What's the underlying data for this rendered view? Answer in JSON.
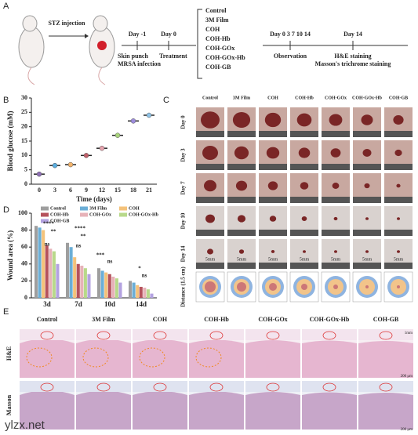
{
  "figure": {
    "panel_labels": [
      "A",
      "B",
      "C",
      "D",
      "E"
    ],
    "groups": [
      "Control",
      "3M Film",
      "COH",
      "COH-Hb",
      "COH-GOx",
      "COH-GOx-Hb",
      "COH-GB"
    ],
    "timeline": {
      "stz": "STZ injection",
      "day_m1": "Day -1",
      "day0": "Day 0",
      "punch": "Skin punch",
      "mrsa": "MRSA infection",
      "treatment": "Treatment",
      "obs_days": "Day 0 3 7 10 14",
      "day14": "Day 14",
      "observation": "Observation",
      "he": "H&E staining",
      "masson": "Masson's trichrome staining"
    },
    "photo_rows": [
      "Day 0",
      "Day 3",
      "Day 7",
      "Day 10",
      "Day 14",
      "Distance (1.5 cm)"
    ],
    "photo_scale": "5mm",
    "histology_rows": [
      "H&E",
      "Masson"
    ],
    "histology_scales": [
      "1mm",
      "200 μm"
    ],
    "watermark": "ylzx.net"
  },
  "chart_data": [
    {
      "type": "scatter",
      "ylabel": "Blood glucose (mM)",
      "xlabel": "Time (days)",
      "categories": [
        "0",
        "3",
        "6",
        "9",
        "12",
        "15",
        "18",
        "21"
      ],
      "values": [
        3.5,
        6.5,
        6.8,
        10,
        12.5,
        17,
        22,
        24
      ],
      "colors": [
        "#8e6fb5",
        "#5aaee0",
        "#f2b36b",
        "#c0606a",
        "#e7a3ae",
        "#a9d47d",
        "#9d8cdc",
        "#8fc4e8"
      ],
      "ylim": [
        0,
        30
      ],
      "yticks": [
        0,
        5,
        10,
        15,
        20,
        25,
        30
      ]
    },
    {
      "type": "bar",
      "ylabel": "Wound area (%)",
      "categories": [
        "3d",
        "7d",
        "10d",
        "14d"
      ],
      "series": [
        {
          "name": "Control",
          "color": "#9e9e9e",
          "values": [
            85,
            65,
            35,
            20
          ]
        },
        {
          "name": "3M Film",
          "color": "#6baed6",
          "values": [
            83,
            60,
            32,
            18
          ]
        },
        {
          "name": "COH",
          "color": "#f4c27a",
          "values": [
            80,
            48,
            30,
            15
          ]
        },
        {
          "name": "COH-Hb",
          "color": "#b5525c",
          "values": [
            62,
            40,
            28,
            13
          ]
        },
        {
          "name": "COH-GOx",
          "color": "#e7b2b8",
          "values": [
            58,
            38,
            25,
            12
          ]
        },
        {
          "name": "COH-GOx-Hb",
          "color": "#b8d98a",
          "values": [
            55,
            35,
            23,
            10
          ]
        },
        {
          "name": "COH-GB",
          "color": "#b3a2e0",
          "values": [
            40,
            28,
            18,
            5
          ]
        }
      ],
      "annotations": [
        "****",
        "**",
        "ns",
        "****",
        "**",
        "ns",
        "***",
        "ns",
        "*",
        "ns"
      ],
      "ylim": [
        0,
        100
      ],
      "yticks": [
        0,
        20,
        40,
        60,
        80,
        100
      ]
    }
  ]
}
